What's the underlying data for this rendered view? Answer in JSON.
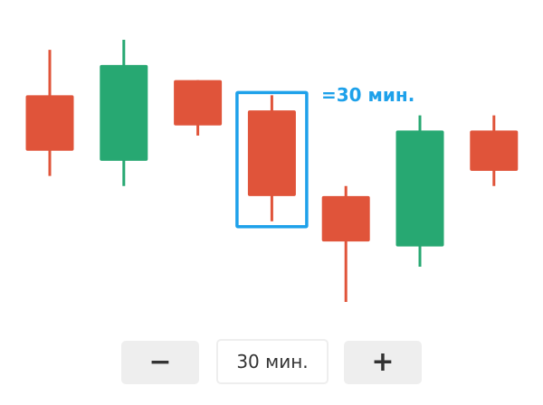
{
  "chart_data": {
    "type": "candlestick",
    "candles": [
      {
        "open": 95,
        "close": 84,
        "high": 104,
        "low": 79,
        "direction": "down"
      },
      {
        "open": 82,
        "close": 101,
        "high": 106,
        "low": 77,
        "direction": "up"
      },
      {
        "open": 98,
        "close": 89,
        "high": 98,
        "low": 87,
        "direction": "down"
      },
      {
        "open": 92,
        "close": 75,
        "high": 95,
        "low": 70,
        "direction": "down",
        "highlighted": true
      },
      {
        "open": 75,
        "close": 66,
        "high": 77,
        "low": 54,
        "direction": "down"
      },
      {
        "open": 65,
        "close": 88,
        "high": 91,
        "low": 61,
        "direction": "up"
      },
      {
        "open": 88,
        "close": 80,
        "high": 91,
        "low": 77,
        "direction": "down"
      }
    ],
    "callout": "=30 мин.",
    "colors": {
      "up": "#27a872",
      "down": "#e0543a",
      "highlight": "#1ea1ea"
    }
  },
  "controls": {
    "decrease_icon": "minus-icon",
    "decrease_glyph": "−",
    "interval_value": "30 мин.",
    "increase_icon": "plus-icon",
    "increase_glyph": "+"
  }
}
